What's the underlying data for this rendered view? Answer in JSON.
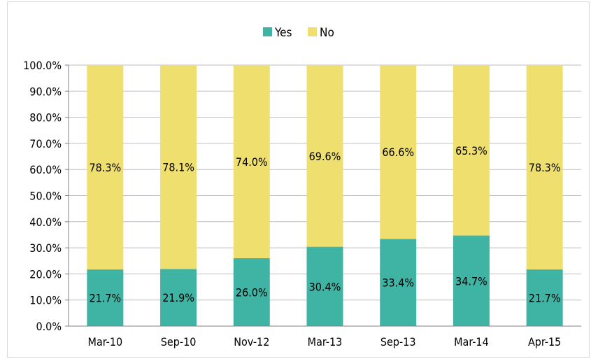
{
  "chart_data": {
    "type": "bar",
    "stacked": true,
    "title": "",
    "xlabel": "",
    "ylabel": "",
    "categories": [
      "Mar-10",
      "Sep-10",
      "Nov-12",
      "Mar-13",
      "Sep-13",
      "Mar-14",
      "Apr-15"
    ],
    "series": [
      {
        "name": "Yes",
        "color": "#3fb3a4",
        "values": [
          21.7,
          21.9,
          26.0,
          30.4,
          33.4,
          34.7,
          21.7
        ],
        "labels": [
          "21.7%",
          "21.9%",
          "26.0%",
          "30.4%",
          "33.4%",
          "34.7%",
          "21.7%"
        ]
      },
      {
        "name": "No",
        "color": "#efdf6f",
        "values": [
          78.3,
          78.1,
          74.0,
          69.6,
          66.6,
          65.3,
          78.3
        ],
        "labels": [
          "78.3%",
          "78.1%",
          "74.0%",
          "69.6%",
          "66.6%",
          "65.3%",
          "78.3%"
        ]
      }
    ],
    "ylim": [
      0,
      100
    ],
    "yticks": [
      "0.0%",
      "10.0%",
      "20.0%",
      "30.0%",
      "40.0%",
      "50.0%",
      "60.0%",
      "70.0%",
      "80.0%",
      "90.0%",
      "100.0%"
    ],
    "grid": true,
    "legend_position": "top-center",
    "gridline_color": "#bfbfbf"
  }
}
